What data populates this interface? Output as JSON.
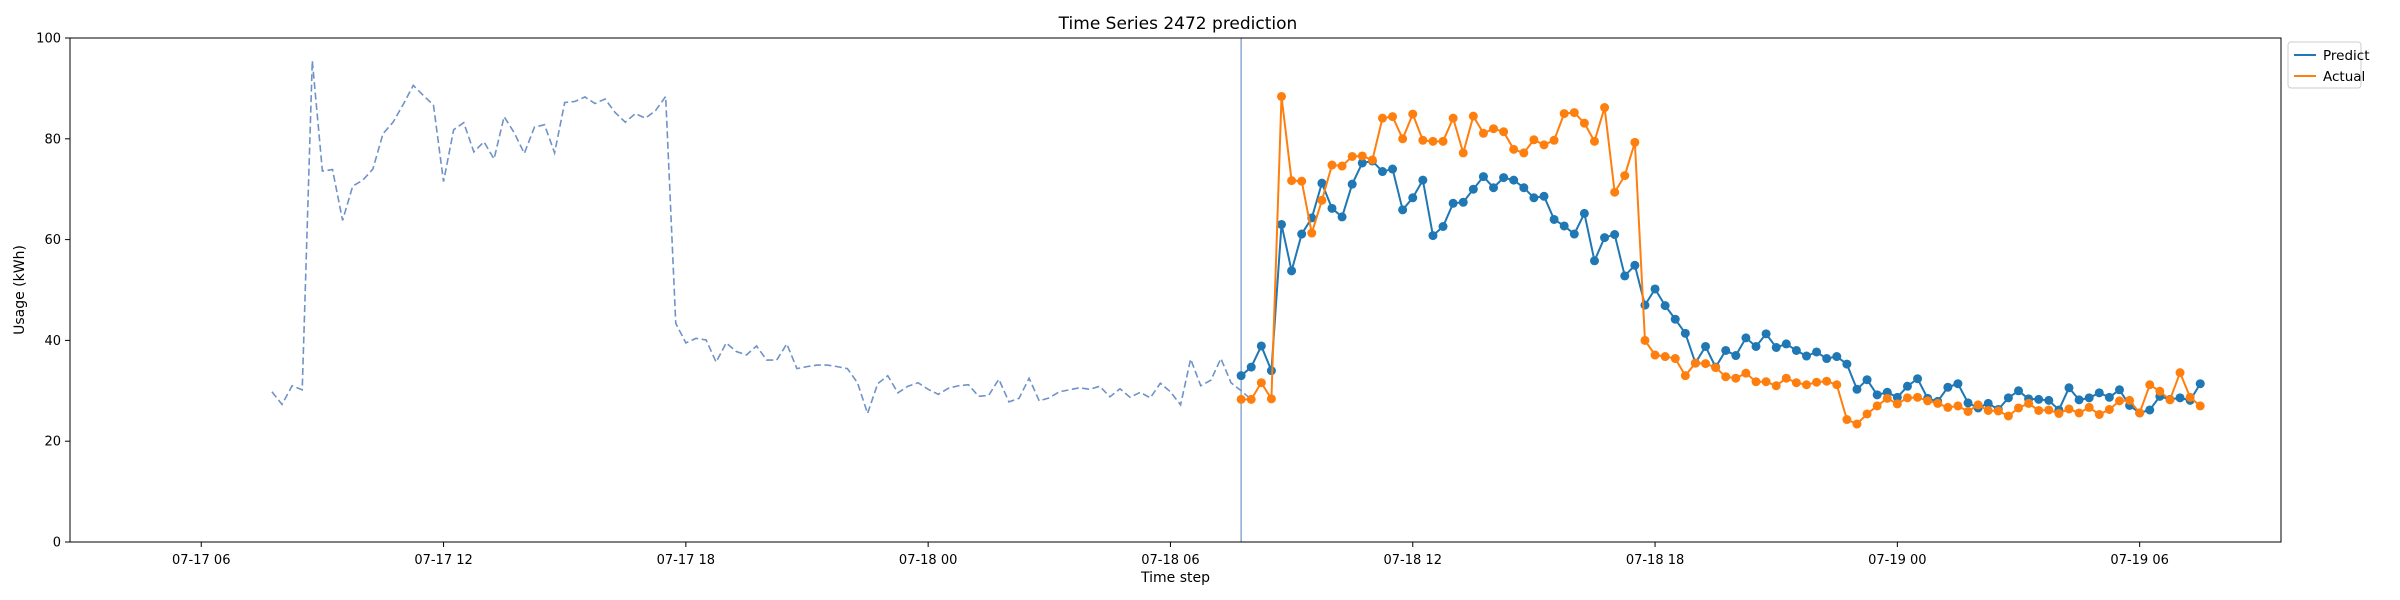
{
  "chart_data": {
    "type": "line",
    "title": "Time Series 2472 prediction",
    "xlabel": "Time step",
    "ylabel": "Usage (kWh)",
    "ylim": [
      0,
      100
    ],
    "xlim": [
      -13,
      206
    ],
    "yticks": [
      0,
      20,
      40,
      60,
      80,
      100
    ],
    "xticks": [
      {
        "x": 0,
        "label": "07-17 06"
      },
      {
        "x": 24,
        "label": "07-17 12"
      },
      {
        "x": 48,
        "label": "07-17 18"
      },
      {
        "x": 72,
        "label": "07-18 00"
      },
      {
        "x": 96,
        "label": "07-18 06"
      },
      {
        "x": 120,
        "label": "07-18 12"
      },
      {
        "x": 144,
        "label": "07-18 18"
      },
      {
        "x": 168,
        "label": "07-19 00"
      },
      {
        "x": 192,
        "label": "07-19 06"
      }
    ],
    "x_unit": "15-minute steps from 07-17 06:00",
    "forecast_start_x": 103,
    "colors": {
      "history": "#6f93c7",
      "predict": "#1f77b4",
      "actual": "#ff7f0e",
      "divider": "#6f93c7"
    },
    "legend": {
      "position": "top-right",
      "entries": [
        {
          "name": "Predict",
          "color": "#1f77b4"
        },
        {
          "name": "Actual",
          "color": "#ff7f0e"
        }
      ]
    },
    "history": {
      "x0": 7,
      "values": [
        29.8,
        27.3,
        31.0,
        30.2,
        95.5,
        73.6,
        73.9,
        63.8,
        70.6,
        71.8,
        74.0,
        81.0,
        83.3,
        86.8,
        90.6,
        88.6,
        86.7,
        71.5,
        81.8,
        83.2,
        77.4,
        79.4,
        76.0,
        84.4,
        81.2,
        77.1,
        82.3,
        82.8,
        77.2,
        87.2,
        87.4,
        88.3,
        87.0,
        87.9,
        85.2,
        83.3,
        85.0,
        84.1,
        85.6,
        88.4,
        43.4,
        39.5,
        40.4,
        40.1,
        35.7,
        39.5,
        37.8,
        37.1,
        38.9,
        36.1,
        36.1,
        39.3,
        34.4,
        34.8,
        35.1,
        35.1,
        34.8,
        34.4,
        31.6,
        25.5,
        31.4,
        33.0,
        29.6,
        30.9,
        31.6,
        30.3,
        29.3,
        30.5,
        31.0,
        31.2,
        28.9,
        29.1,
        32.3,
        27.8,
        28.5,
        32.5,
        28.0,
        28.6,
        29.8,
        30.2,
        30.6,
        30.3,
        30.9,
        28.8,
        30.4,
        28.7,
        29.7,
        28.6,
        31.5,
        29.8,
        27.2,
        36.3,
        31.0,
        32.1,
        36.4,
        31.6,
        30.0,
        28.3
      ]
    },
    "series": [
      {
        "name": "Predict",
        "x0": 103,
        "values": [
          33.0,
          34.7,
          38.9,
          34.0,
          63.0,
          53.8,
          61.1,
          64.3,
          71.2,
          66.2,
          64.5,
          71.0,
          75.2,
          75.6,
          73.5,
          74.0,
          65.9,
          68.3,
          71.8,
          60.8,
          62.6,
          67.2,
          67.4,
          70.0,
          72.5,
          70.3,
          72.3,
          71.8,
          70.3,
          68.3,
          68.6,
          64.0,
          62.7,
          61.1,
          65.2,
          55.8,
          60.4,
          61.0,
          52.8,
          54.9,
          47.0,
          50.2,
          46.9,
          44.2,
          41.4,
          35.5,
          38.8,
          34.7,
          38.0,
          37.0,
          40.5,
          38.8,
          41.3,
          38.6,
          39.3,
          38.0,
          36.9,
          37.7,
          36.4,
          36.8,
          35.3,
          30.3,
          32.2,
          29.2,
          29.7,
          28.7,
          30.9,
          32.4,
          28.5,
          27.9,
          30.7,
          31.4,
          27.6,
          26.6,
          27.5,
          26.3,
          28.6,
          30.0,
          28.4,
          28.3,
          28.1,
          26.2,
          30.6,
          28.2,
          28.6,
          29.6,
          28.7,
          30.2,
          27.1,
          25.6,
          26.2,
          28.9,
          28.3,
          28.6,
          28.1,
          31.4
        ]
      },
      {
        "name": "Actual",
        "x0": 103,
        "values": [
          28.3,
          28.3,
          31.6,
          28.4,
          88.4,
          71.7,
          71.6,
          61.3,
          67.8,
          74.8,
          74.6,
          76.5,
          76.6,
          75.8,
          84.1,
          84.4,
          80.0,
          84.9,
          79.7,
          79.5,
          79.5,
          84.1,
          77.2,
          84.5,
          81.1,
          82.0,
          81.4,
          77.9,
          77.2,
          79.8,
          78.8,
          79.7,
          85.0,
          85.2,
          83.1,
          79.5,
          86.2,
          69.4,
          72.7,
          79.3,
          40.0,
          37.1,
          36.8,
          36.4,
          33.0,
          35.5,
          35.4,
          34.6,
          32.8,
          32.5,
          33.5,
          31.8,
          31.8,
          31.0,
          32.5,
          31.6,
          31.2,
          31.7,
          31.9,
          31.2,
          24.3,
          23.4,
          25.4,
          27.0,
          28.5,
          27.4,
          28.6,
          28.7,
          28.0,
          27.5,
          26.7,
          27.0,
          25.9,
          27.2,
          26.1,
          26.0,
          25.0,
          26.6,
          27.5,
          26.1,
          26.2,
          25.5,
          26.4,
          25.6,
          26.7,
          25.3,
          26.3,
          28.0,
          28.1,
          25.6,
          31.2,
          29.9,
          28.2,
          33.6,
          28.7,
          27.0
        ]
      }
    ]
  }
}
